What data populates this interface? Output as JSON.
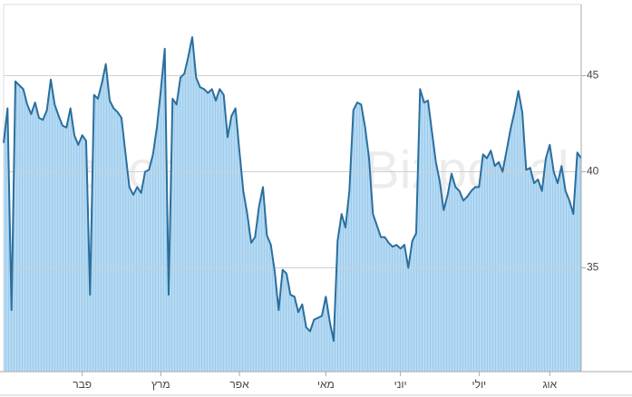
{
  "chart_data": {
    "type": "area",
    "watermark": "Bizportal",
    "values": [
      41.5,
      43.3,
      32.8,
      44.7,
      44.5,
      44.3,
      43.5,
      43.0,
      43.6,
      42.8,
      42.7,
      43.2,
      44.8,
      43.5,
      42.9,
      42.4,
      42.3,
      43.3,
      41.9,
      41.4,
      41.9,
      41.6,
      33.6,
      44.0,
      43.8,
      44.6,
      45.6,
      43.7,
      43.3,
      43.1,
      42.8,
      41.0,
      39.2,
      38.8,
      39.2,
      38.9,
      40.0,
      40.1,
      40.9,
      42.3,
      44.2,
      46.4,
      33.6,
      43.8,
      43.5,
      44.9,
      45.1,
      46.0,
      47.0,
      44.9,
      44.4,
      44.3,
      44.1,
      44.3,
      43.7,
      44.3,
      44.0,
      41.8,
      42.9,
      43.3,
      41.1,
      39.0,
      37.8,
      36.3,
      36.6,
      38.2,
      39.2,
      36.7,
      36.2,
      34.8,
      32.8,
      34.9,
      34.7,
      33.6,
      33.5,
      32.7,
      33.1,
      31.9,
      31.7,
      32.3,
      32.4,
      32.5,
      33.5,
      32.2,
      31.2,
      36.4,
      37.8,
      37.1,
      39.0,
      43.2,
      43.6,
      43.5,
      42.3,
      40.7,
      37.8,
      37.2,
      36.6,
      36.6,
      36.3,
      36.1,
      36.2,
      36.0,
      36.2,
      35.0,
      36.4,
      36.8,
      44.3,
      43.6,
      43.7,
      42.1,
      40.5,
      39.5,
      38.0,
      38.8,
      39.9,
      39.2,
      39.0,
      38.5,
      38.7,
      39.0,
      39.2,
      39.2,
      40.9,
      40.7,
      41.1,
      40.3,
      40.5,
      40.0,
      41.1,
      42.2,
      43.1,
      44.2,
      43.1,
      40.1,
      40.2,
      39.4,
      39.6,
      39.0,
      40.7,
      41.4,
      40.0,
      39.4,
      40.3,
      39.0,
      38.5,
      37.8,
      41.0,
      40.7
    ],
    "color": "#2a6f9e",
    "fill": "#b5daf3",
    "xlim": [
      0,
      147
    ],
    "xticks": [
      {
        "value": 20,
        "label": "פבר"
      },
      {
        "value": 40,
        "label": "מרץ"
      },
      {
        "value": 60,
        "label": "אפר"
      },
      {
        "value": 82,
        "label": "מאי"
      },
      {
        "value": 101,
        "label": "יוני"
      },
      {
        "value": 121,
        "label": "יולי"
      },
      {
        "value": 139,
        "label": "אוג"
      }
    ],
    "ylim": [
      29.6,
      48.7
    ],
    "yticks": [
      35,
      40,
      45
    ],
    "grid": true
  }
}
